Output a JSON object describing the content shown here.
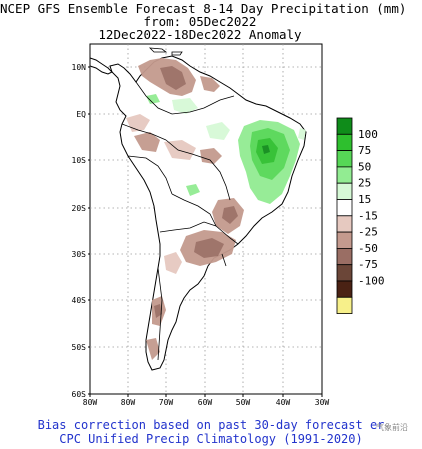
{
  "title": {
    "line1": "NCEP GFS Ensemble Forecast 8-14 Day Precipitation (mm)",
    "line2": "from: 05Dec2022",
    "line3": "12Dec2022-18Dec2022 Anomaly"
  },
  "map": {
    "lat_labels": [
      "10N",
      "EQ",
      "10S",
      "20S",
      "30S",
      "40S",
      "50S",
      "60S"
    ],
    "lon_labels": [
      "80W",
      "80W",
      "70W",
      "60W",
      "50W",
      "40W",
      "30W"
    ],
    "land_outline_color": "#000000",
    "grid_color": "#9a9a9a"
  },
  "legend": {
    "labels": [
      "100",
      "75",
      "50",
      "25",
      "15",
      "-15",
      "-25",
      "-50",
      "-75",
      "-100"
    ],
    "colors": [
      "#0f8c1a",
      "#2ebf2e",
      "#56d756",
      "#92ec92",
      "#d6f9d6",
      "#ffffff",
      "#e6c9c0",
      "#c49a8e",
      "#9a6e64",
      "#6b4638",
      "#4a2214",
      "#f7f08a"
    ]
  },
  "footer": {
    "line1": "Bias correction based on past 30-day forecast er",
    "line2": "CPC Unified Precip Climatology (1991-2020)"
  },
  "watermark": "气象前沿"
}
